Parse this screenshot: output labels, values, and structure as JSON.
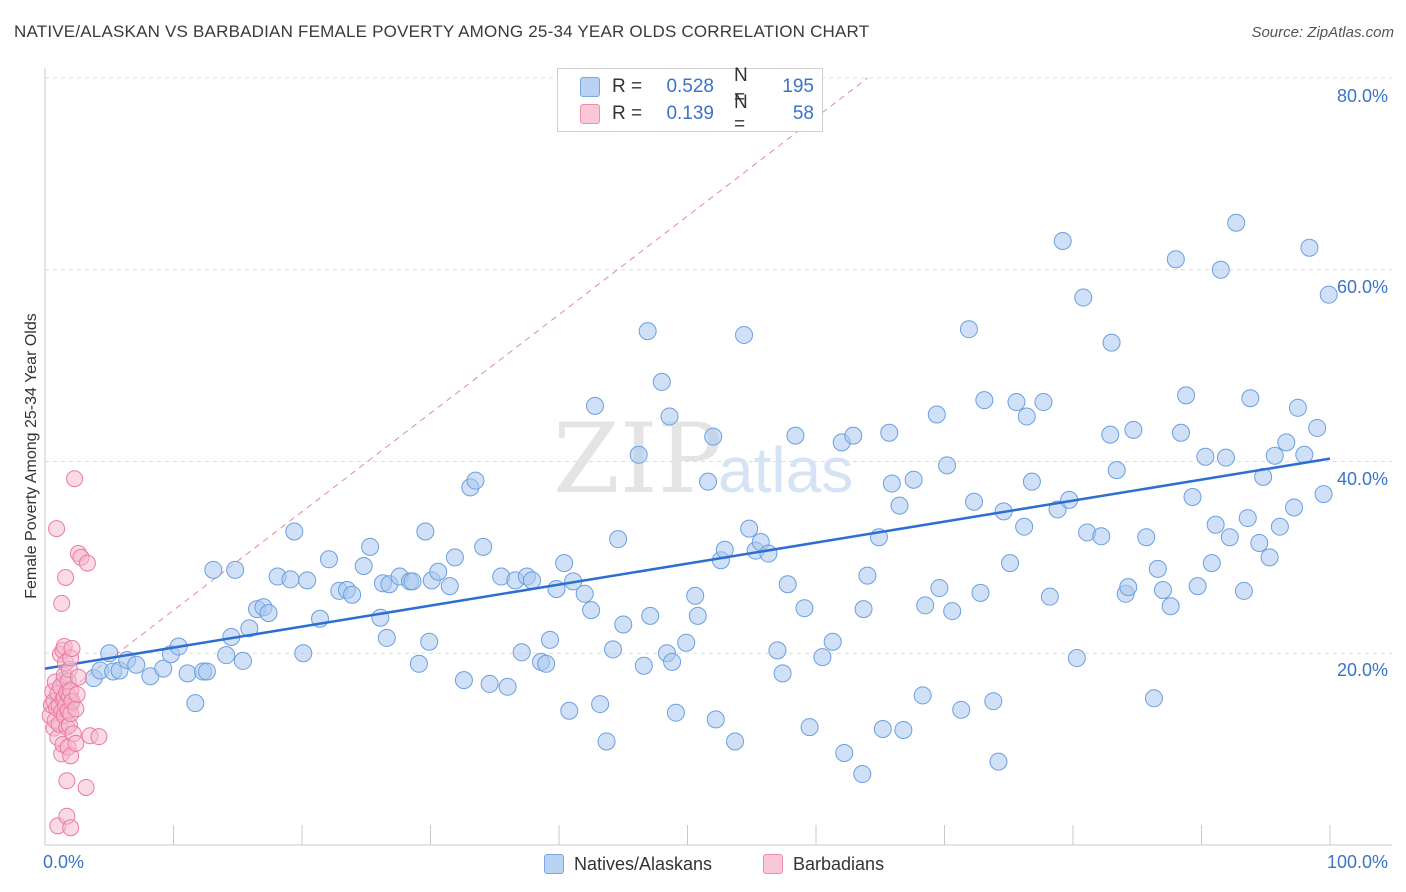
{
  "title": "NATIVE/ALASKAN VS BARBADIAN FEMALE POVERTY AMONG 25-34 YEAR OLDS CORRELATION CHART",
  "source": "Source: ZipAtlas.com",
  "watermark": {
    "zip": "ZIP",
    "atlas": "atlas"
  },
  "legend": {
    "r_label": "R =",
    "n_label": "N =",
    "natives": {
      "r": "0.528",
      "n": "195",
      "color": "#aecbf2"
    },
    "barbadians": {
      "r": "0.139",
      "n": "58",
      "color": "#f6b8cc"
    }
  },
  "bottom_legend": {
    "natives": "Natives/Alaskans",
    "barbadians": "Barbadians"
  },
  "chart_data": {
    "type": "scatter",
    "title": "NATIVE/ALASKAN VS BARBADIAN FEMALE POVERTY AMONG 25-34 YEAR OLDS CORRELATION CHART",
    "xlabel": "",
    "ylabel": "Female Poverty Among 25-34 Year Olds",
    "xlim": [
      0,
      100
    ],
    "ylim": [
      0,
      80
    ],
    "x_tick_labels": [
      "0.0%",
      "100.0%"
    ],
    "y_tick_labels": [
      "20.0%",
      "40.0%",
      "60.0%",
      "80.0%"
    ],
    "y_ticks": [
      20,
      40,
      60,
      80
    ],
    "grid": true,
    "legend_position": "top-center",
    "colors": {
      "natives_fill": "#a9c8f0",
      "natives_stroke": "#6b9fe0",
      "natives_trend": "#2d6fd0",
      "barbadians_fill": "#f6b8cc",
      "barbadians_stroke": "#ec7aa0",
      "barbadians_trend": "#e08aa8"
    },
    "series": [
      {
        "name": "Natives/Alaskans",
        "trend": {
          "x": [
            0,
            100
          ],
          "y": [
            18.4,
            40.3
          ]
        },
        "points": [
          [
            1.5,
            17.2
          ],
          [
            2.0,
            14.8
          ],
          [
            3.8,
            17.4
          ],
          [
            4.3,
            18.2
          ],
          [
            5.0,
            20.0
          ],
          [
            5.3,
            18.1
          ],
          [
            5.8,
            18.2
          ],
          [
            6.4,
            19.3
          ],
          [
            7.1,
            18.8
          ],
          [
            8.2,
            17.6
          ],
          [
            9.2,
            18.4
          ],
          [
            9.8,
            19.9
          ],
          [
            10.4,
            20.7
          ],
          [
            11.1,
            17.9
          ],
          [
            11.7,
            14.8
          ],
          [
            12.3,
            18.1
          ],
          [
            12.6,
            18.1
          ],
          [
            13.1,
            28.7
          ],
          [
            14.1,
            19.8
          ],
          [
            14.5,
            21.7
          ],
          [
            14.8,
            28.7
          ],
          [
            15.4,
            19.2
          ],
          [
            15.9,
            22.6
          ],
          [
            16.5,
            24.6
          ],
          [
            17.0,
            24.8
          ],
          [
            17.4,
            24.2
          ],
          [
            18.1,
            28.0
          ],
          [
            19.1,
            27.7
          ],
          [
            19.4,
            32.7
          ],
          [
            20.1,
            20.0
          ],
          [
            20.4,
            27.6
          ],
          [
            21.4,
            23.6
          ],
          [
            22.1,
            29.8
          ],
          [
            22.9,
            26.5
          ],
          [
            23.5,
            26.6
          ],
          [
            23.9,
            26.1
          ],
          [
            24.8,
            29.1
          ],
          [
            25.3,
            31.1
          ],
          [
            26.1,
            23.7
          ],
          [
            26.3,
            27.3
          ],
          [
            26.6,
            21.6
          ],
          [
            26.8,
            27.2
          ],
          [
            27.6,
            28.0
          ],
          [
            28.4,
            27.5
          ],
          [
            28.6,
            27.5
          ],
          [
            29.1,
            18.9
          ],
          [
            29.6,
            32.7
          ],
          [
            29.9,
            21.2
          ],
          [
            30.1,
            27.6
          ],
          [
            30.6,
            28.5
          ],
          [
            31.5,
            27.0
          ],
          [
            31.9,
            30.0
          ],
          [
            32.6,
            17.2
          ],
          [
            33.1,
            37.3
          ],
          [
            33.5,
            38.0
          ],
          [
            34.1,
            31.1
          ],
          [
            34.6,
            16.8
          ],
          [
            35.5,
            28.0
          ],
          [
            36.0,
            16.5
          ],
          [
            36.6,
            27.6
          ],
          [
            37.1,
            20.1
          ],
          [
            37.5,
            28.0
          ],
          [
            37.9,
            27.6
          ],
          [
            38.6,
            19.1
          ],
          [
            39.0,
            18.9
          ],
          [
            39.3,
            21.4
          ],
          [
            39.8,
            26.7
          ],
          [
            40.4,
            29.4
          ],
          [
            40.8,
            14.0
          ],
          [
            41.1,
            27.5
          ],
          [
            42.0,
            26.2
          ],
          [
            42.5,
            24.5
          ],
          [
            42.8,
            45.8
          ],
          [
            43.2,
            14.7
          ],
          [
            43.7,
            10.8
          ],
          [
            44.2,
            20.4
          ],
          [
            44.6,
            31.9
          ],
          [
            45.0,
            23.0
          ],
          [
            46.2,
            40.7
          ],
          [
            46.6,
            18.7
          ],
          [
            46.9,
            53.6
          ],
          [
            47.1,
            23.9
          ],
          [
            48.0,
            48.3
          ],
          [
            48.4,
            20.0
          ],
          [
            48.6,
            44.7
          ],
          [
            48.8,
            19.1
          ],
          [
            49.1,
            13.8
          ],
          [
            49.9,
            21.1
          ],
          [
            50.6,
            26.0
          ],
          [
            50.8,
            23.9
          ],
          [
            51.6,
            37.9
          ],
          [
            52.0,
            42.6
          ],
          [
            52.2,
            13.1
          ],
          [
            52.6,
            29.7
          ],
          [
            52.9,
            30.8
          ],
          [
            53.7,
            10.8
          ],
          [
            54.4,
            53.2
          ],
          [
            54.8,
            33.0
          ],
          [
            55.3,
            30.7
          ],
          [
            55.7,
            31.6
          ],
          [
            56.3,
            30.4
          ],
          [
            57.0,
            20.3
          ],
          [
            57.4,
            17.9
          ],
          [
            57.8,
            27.2
          ],
          [
            58.4,
            42.7
          ],
          [
            59.1,
            24.7
          ],
          [
            59.5,
            12.3
          ],
          [
            60.5,
            19.6
          ],
          [
            61.3,
            21.2
          ],
          [
            62.0,
            42.0
          ],
          [
            62.2,
            9.6
          ],
          [
            62.9,
            42.7
          ],
          [
            63.6,
            7.4
          ],
          [
            63.7,
            24.6
          ],
          [
            64.0,
            28.1
          ],
          [
            64.9,
            32.1
          ],
          [
            65.2,
            12.1
          ],
          [
            65.7,
            43.0
          ],
          [
            65.9,
            37.7
          ],
          [
            66.5,
            35.4
          ],
          [
            66.8,
            12.0
          ],
          [
            67.6,
            38.1
          ],
          [
            68.3,
            15.6
          ],
          [
            68.5,
            25.0
          ],
          [
            69.4,
            44.9
          ],
          [
            69.6,
            26.8
          ],
          [
            70.2,
            39.6
          ],
          [
            70.6,
            24.4
          ],
          [
            71.3,
            14.1
          ],
          [
            71.9,
            53.8
          ],
          [
            72.3,
            35.8
          ],
          [
            72.8,
            26.3
          ],
          [
            73.1,
            46.4
          ],
          [
            73.8,
            15.0
          ],
          [
            74.2,
            8.7
          ],
          [
            74.6,
            34.8
          ],
          [
            75.1,
            29.4
          ],
          [
            75.6,
            46.2
          ],
          [
            76.2,
            33.2
          ],
          [
            76.4,
            44.7
          ],
          [
            76.8,
            37.9
          ],
          [
            77.7,
            46.2
          ],
          [
            78.2,
            25.9
          ],
          [
            78.8,
            35.0
          ],
          [
            79.2,
            63.0
          ],
          [
            79.7,
            36.0
          ],
          [
            80.3,
            19.5
          ],
          [
            80.8,
            57.1
          ],
          [
            81.1,
            32.6
          ],
          [
            82.2,
            32.2
          ],
          [
            82.9,
            42.8
          ],
          [
            83.0,
            52.4
          ],
          [
            83.4,
            39.1
          ],
          [
            84.1,
            26.2
          ],
          [
            84.3,
            26.9
          ],
          [
            84.7,
            43.3
          ],
          [
            85.7,
            32.1
          ],
          [
            86.3,
            15.3
          ],
          [
            86.6,
            28.8
          ],
          [
            87.0,
            26.6
          ],
          [
            87.6,
            24.9
          ],
          [
            88.0,
            61.1
          ],
          [
            88.4,
            43.0
          ],
          [
            88.8,
            46.9
          ],
          [
            89.3,
            36.3
          ],
          [
            89.7,
            27.0
          ],
          [
            90.3,
            40.5
          ],
          [
            90.8,
            29.4
          ],
          [
            91.1,
            33.4
          ],
          [
            91.5,
            60.0
          ],
          [
            91.9,
            40.4
          ],
          [
            92.2,
            32.1
          ],
          [
            92.7,
            64.9
          ],
          [
            93.3,
            26.5
          ],
          [
            93.6,
            34.1
          ],
          [
            93.8,
            46.6
          ],
          [
            94.5,
            31.5
          ],
          [
            94.8,
            38.4
          ],
          [
            95.3,
            30.0
          ],
          [
            95.7,
            40.6
          ],
          [
            96.1,
            33.2
          ],
          [
            96.6,
            42.0
          ],
          [
            97.2,
            35.2
          ],
          [
            97.5,
            45.6
          ],
          [
            98.0,
            40.7
          ],
          [
            98.4,
            62.3
          ],
          [
            99.0,
            43.5
          ],
          [
            99.5,
            36.6
          ],
          [
            99.9,
            57.4
          ]
        ]
      },
      {
        "name": "Barbadians",
        "trend": {
          "x": [
            0,
            100
          ],
          "y": [
            14.2,
            117.0
          ]
        },
        "points": [
          [
            0.4,
            13.5
          ],
          [
            0.5,
            14.6
          ],
          [
            0.6,
            16.0
          ],
          [
            0.7,
            12.2
          ],
          [
            0.7,
            15.0
          ],
          [
            0.8,
            13.0
          ],
          [
            0.8,
            17.0
          ],
          [
            0.9,
            14.3
          ],
          [
            0.9,
            33.0
          ],
          [
            1.0,
            15.8
          ],
          [
            1.0,
            11.2
          ],
          [
            1.0,
            2.0
          ],
          [
            1.1,
            14.5
          ],
          [
            1.1,
            12.6
          ],
          [
            1.2,
            16.5
          ],
          [
            1.2,
            19.9
          ],
          [
            1.3,
            13.9
          ],
          [
            1.3,
            9.5
          ],
          [
            1.3,
            25.2
          ],
          [
            1.4,
            15.2
          ],
          [
            1.4,
            10.5
          ],
          [
            1.4,
            20.3
          ],
          [
            1.5,
            15.4
          ],
          [
            1.5,
            13.5
          ],
          [
            1.5,
            17.7
          ],
          [
            1.5,
            20.7
          ],
          [
            1.6,
            14.5
          ],
          [
            1.6,
            19.0
          ],
          [
            1.6,
            27.9
          ],
          [
            1.7,
            15.9
          ],
          [
            1.7,
            12.3
          ],
          [
            1.7,
            3.0
          ],
          [
            1.7,
            6.7
          ],
          [
            1.8,
            14.0
          ],
          [
            1.8,
            17.1
          ],
          [
            1.8,
            10.2
          ],
          [
            1.9,
            15.5
          ],
          [
            1.9,
            12.5
          ],
          [
            1.9,
            18.3
          ],
          [
            2.0,
            13.7
          ],
          [
            2.0,
            16.1
          ],
          [
            2.0,
            19.5
          ],
          [
            2.0,
            9.3
          ],
          [
            2.0,
            1.8
          ],
          [
            2.1,
            20.5
          ],
          [
            2.1,
            15.0
          ],
          [
            2.2,
            11.6
          ],
          [
            2.3,
            38.2
          ],
          [
            2.4,
            10.6
          ],
          [
            2.4,
            14.2
          ],
          [
            2.5,
            15.7
          ],
          [
            2.6,
            17.5
          ],
          [
            2.6,
            30.4
          ],
          [
            2.8,
            30.0
          ],
          [
            3.2,
            6.0
          ],
          [
            3.3,
            29.4
          ],
          [
            3.5,
            11.4
          ],
          [
            4.2,
            11.3
          ]
        ]
      }
    ]
  }
}
